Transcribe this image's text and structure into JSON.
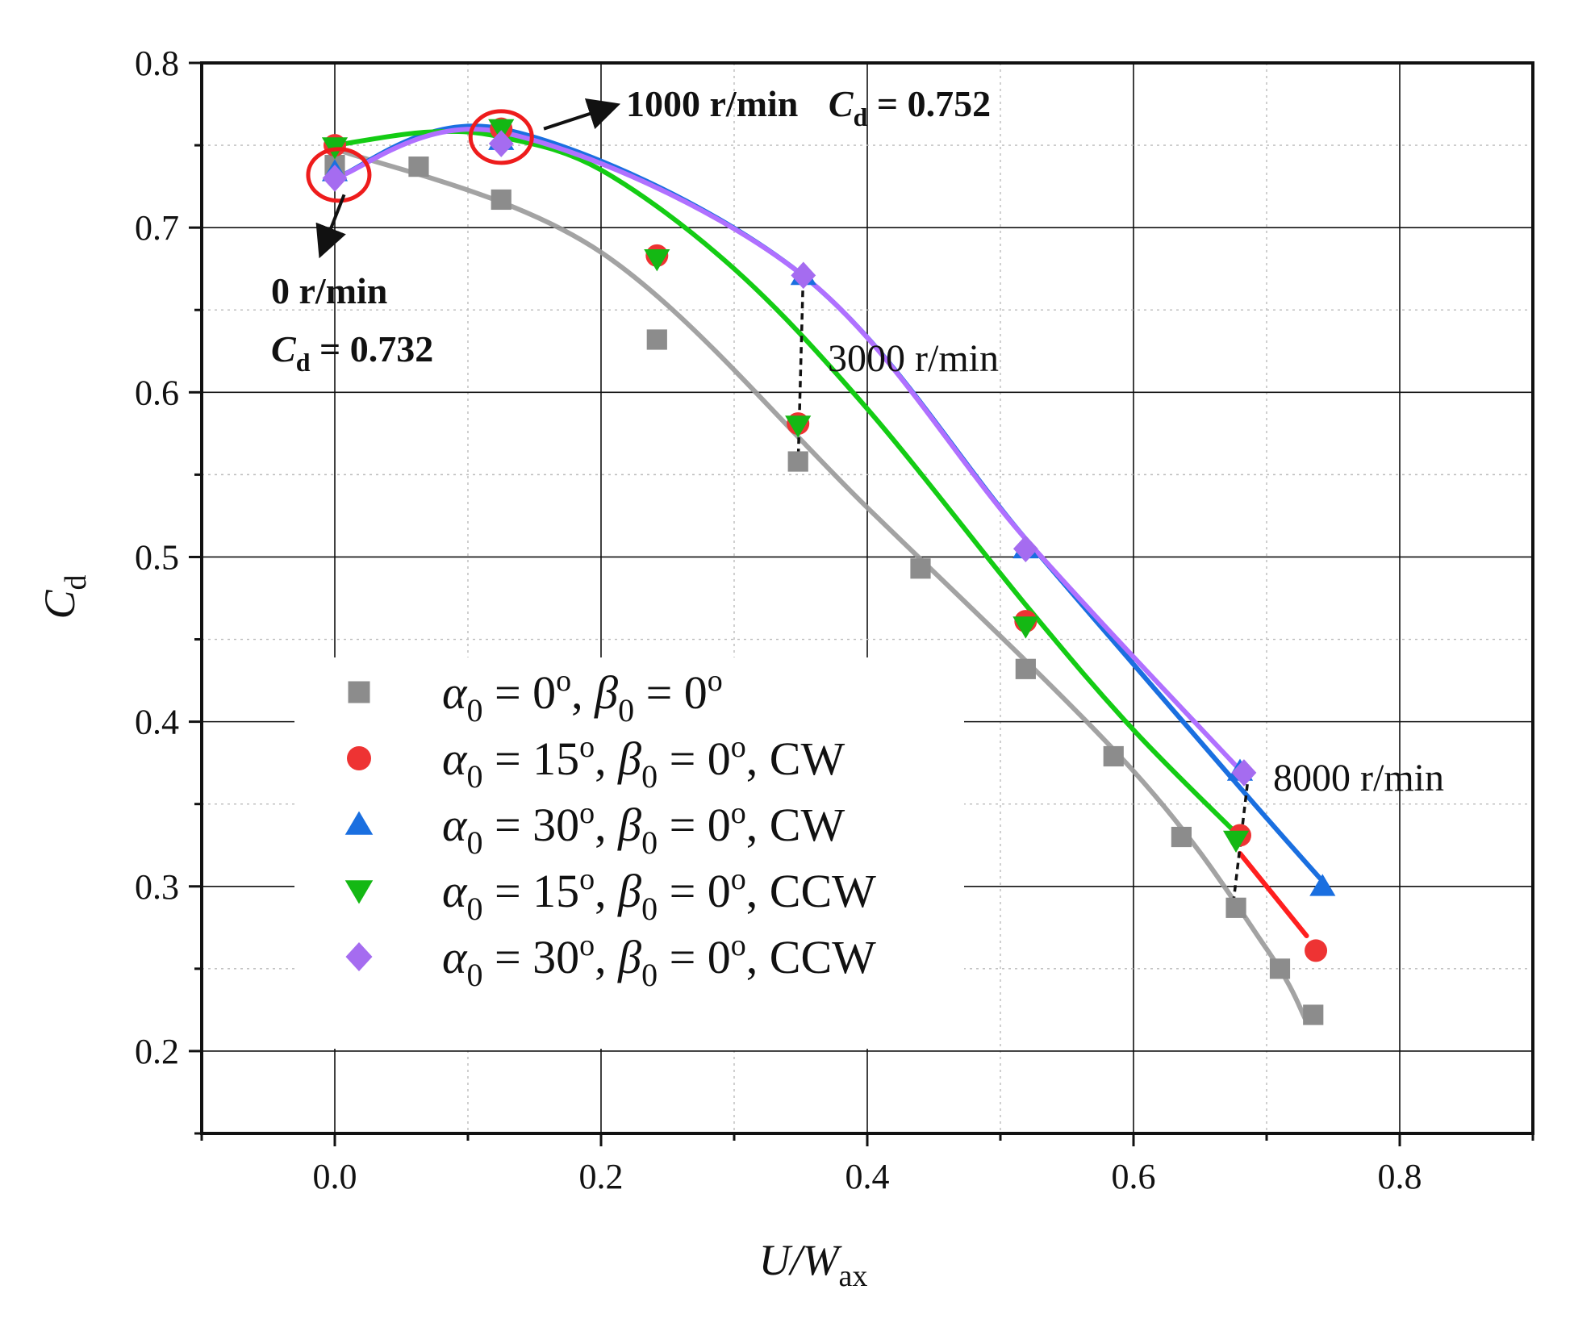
{
  "chart_data": {
    "type": "scatter",
    "xlabel": {
      "main": "U/W",
      "sub": "ax"
    },
    "ylabel": {
      "main": "C",
      "sub": "d"
    },
    "xlim": [
      -0.1,
      0.9
    ],
    "ylim": [
      0.15,
      0.8
    ],
    "x_ticks": [
      "0.0",
      "0.2",
      "0.4",
      "0.6",
      "0.8"
    ],
    "x_tick_values": [
      0.0,
      0.2,
      0.4,
      0.6,
      0.8
    ],
    "y_ticks": [
      "0.2",
      "0.3",
      "0.4",
      "0.5",
      "0.6",
      "0.7",
      "0.8"
    ],
    "y_tick_values": [
      0.2,
      0.3,
      0.4,
      0.5,
      0.6,
      0.7,
      0.8
    ],
    "grid": true,
    "legend_position": "lower-left",
    "series": [
      {
        "name": "α0 = 0°, β0 = 0°",
        "legend": {
          "a_val": "0",
          "b_val": "0",
          "suffix": ""
        },
        "marker": "square",
        "color": "#8c8c8c",
        "line_color": "#999999",
        "x": [
          0.0,
          0.063,
          0.125,
          0.242,
          0.348,
          0.44,
          0.519,
          0.585,
          0.636,
          0.677,
          0.71,
          0.735
        ],
        "y": [
          0.738,
          0.737,
          0.717,
          0.632,
          0.558,
          0.493,
          0.432,
          0.379,
          0.33,
          0.287,
          0.25,
          0.222
        ],
        "fit_x": [
          0.0,
          0.2,
          0.4,
          0.6,
          0.7,
          0.73
        ],
        "fit_y": [
          0.748,
          0.685,
          0.53,
          0.37,
          0.262,
          0.218
        ]
      },
      {
        "name": "α0 = 15°, β0 = 0°, CW",
        "legend": {
          "a_val": "15",
          "b_val": "0",
          "suffix": ", CW"
        },
        "marker": "circle",
        "color": "#ee3333",
        "line_color": "#ff1f1f",
        "x": [
          0.0,
          0.125,
          0.242,
          0.348,
          0.519,
          0.68,
          0.737
        ],
        "y": [
          0.75,
          0.76,
          0.683,
          0.581,
          0.461,
          0.331,
          0.261
        ],
        "fit_x": [
          0.68,
          0.73
        ],
        "fit_y": [
          0.32,
          0.27
        ]
      },
      {
        "name": "α0 = 30°, β0 = 0°, CW",
        "legend": {
          "a_val": "30",
          "b_val": "0",
          "suffix": ", CW"
        },
        "marker": "triangle-up",
        "color": "#1a6fe0",
        "line_color": "#1a6fe0",
        "x": [
          0.0,
          0.125,
          0.352,
          0.519,
          0.68,
          0.742
        ],
        "y": [
          0.734,
          0.753,
          0.671,
          0.505,
          0.37,
          0.3
        ],
        "fit_x": [
          0.0,
          0.125,
          0.35,
          0.52,
          0.68,
          0.74
        ],
        "fit_y": [
          0.73,
          0.76,
          0.672,
          0.51,
          0.36,
          0.305
        ]
      },
      {
        "name": "α0 = 15°, β0 = 0°, CCW",
        "legend": {
          "a_val": "15",
          "b_val": "0",
          "suffix": ", CCW"
        },
        "marker": "triangle-down",
        "color": "#14b814",
        "line_color": "#14cc14",
        "x": [
          0.0,
          0.125,
          0.242,
          0.348,
          0.519,
          0.677
        ],
        "y": [
          0.749,
          0.76,
          0.681,
          0.58,
          0.458,
          0.328
        ],
        "fit_x": [
          0.0,
          0.07,
          0.125,
          0.2,
          0.3,
          0.4,
          0.52,
          0.6,
          0.68
        ],
        "fit_y": [
          0.75,
          0.758,
          0.755,
          0.735,
          0.675,
          0.59,
          0.47,
          0.395,
          0.33
        ]
      },
      {
        "name": "α0 = 30°, β0 = 0°, CCW",
        "legend": {
          "a_val": "30",
          "b_val": "0",
          "suffix": ", CCW"
        },
        "marker": "diamond",
        "color": "#a56cf0",
        "line_color": "#b070ff",
        "x": [
          0.0,
          0.125,
          0.352,
          0.519,
          0.683
        ],
        "y": [
          0.73,
          0.751,
          0.671,
          0.505,
          0.369
        ],
        "fit_x": [
          0.0,
          0.125,
          0.35,
          0.52,
          0.683
        ],
        "fit_y": [
          0.73,
          0.758,
          0.672,
          0.51,
          0.368
        ]
      }
    ],
    "annotations": {
      "rpm_1000": "1000 r/min",
      "cd_1000_main": "C",
      "cd_1000_sub": "d",
      "cd_1000_val": " = 0.752",
      "rpm_0": "0 r/min",
      "cd_0_main": "C",
      "cd_0_sub": "d",
      "cd_0_val": " = 0.732",
      "rpm_3000": "3000 r/min",
      "rpm_8000": "8000 r/min"
    },
    "highlight_circles_at": [
      [
        0.003,
        0.732
      ],
      [
        0.125,
        0.755
      ]
    ],
    "dashed_lines": [
      {
        "x": [
          0.348,
          0.352
        ],
        "y": [
          0.555,
          0.675
        ]
      },
      {
        "x": [
          0.675,
          0.687
        ],
        "y": [
          0.29,
          0.372
        ]
      }
    ],
    "arrows": [
      {
        "from": [
          0.157,
          0.76
        ],
        "to": [
          0.21,
          0.774
        ]
      },
      {
        "from": [
          0.007,
          0.72
        ],
        "to": [
          -0.01,
          0.685
        ]
      }
    ]
  }
}
